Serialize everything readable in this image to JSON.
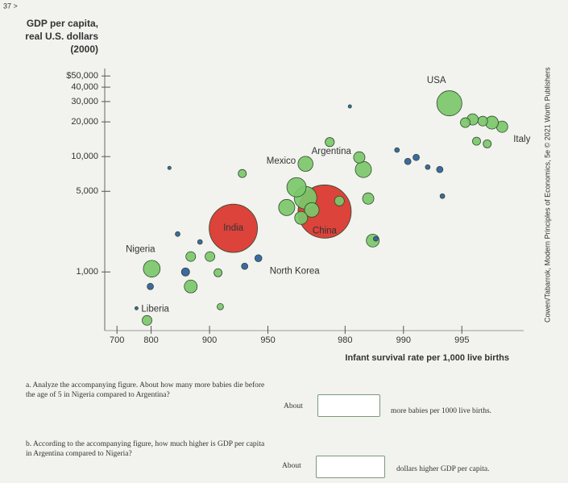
{
  "page_marker": "37 >",
  "chart_data": {
    "type": "bubble",
    "y_label_lines": [
      "GDP per capita,",
      "real U.S. dollars",
      "(2000)"
    ],
    "x_label": "Infant survival rate per 1,000 live births",
    "credit": "Cowen/Tabarrok, Modern Principles of Economics, 5e © 2021 Worth Publishers",
    "xscale": "log(1000 - x)",
    "yscale": "log",
    "xlim": [
      653,
      997.6
    ],
    "ylim": [
      310,
      58000
    ],
    "xticks": [
      700,
      800,
      900,
      950,
      980,
      990,
      995
    ],
    "yticks": [
      {
        "value": 50000,
        "label": "$50,000"
      },
      {
        "value": 40000,
        "label": "40,000"
      },
      {
        "value": 30000,
        "label": "30,000"
      },
      {
        "value": 20000,
        "label": "20,000"
      },
      {
        "value": 10000,
        "label": "10,000"
      },
      {
        "value": 5000,
        "label": "5,000"
      },
      {
        "value": 1000,
        "label": "1,000"
      }
    ],
    "labels": [
      "China",
      "India",
      "USA",
      "Nigeria",
      "Mexico",
      "Italy",
      "Argentina",
      "North Korea",
      "Liberia",
      null,
      null,
      null,
      null,
      null,
      null,
      null,
      null,
      null,
      null,
      null,
      null,
      null,
      null,
      null,
      null,
      null,
      null,
      null,
      null,
      null,
      null,
      null,
      null,
      null,
      null,
      null,
      null,
      null,
      null,
      null,
      null,
      null,
      null,
      null,
      null,
      null
    ],
    "x": [
      974.5,
      924.6,
      994.2,
      801.4,
      968,
      996.9,
      976,
      944,
      762,
      968,
      964.4,
      983.9,
      960,
      970.3,
      996.5,
      966.3,
      875,
      985.6,
      983.1,
      984.8,
      995.6,
      996.1,
      995.2,
      900.5,
      875,
      790,
      978.6,
      995.8,
      996.3,
      909.6,
      932.2,
      867,
      912,
      990.5,
      991.4,
      934.1,
      798,
      993.5,
      993.7,
      989.2,
      992.5,
      888,
      854,
      986.1,
      981.1,
      839
    ],
    "values": [
      3340,
      2390,
      28970,
      1066,
      8650,
      18150,
      13360,
      1315,
      484,
      4400,
      5420,
      7730,
      3620,
      3450,
      19700,
      2940,
      748,
      1870,
      9840,
      4330,
      21000,
      20300,
      19700,
      1360,
      1360,
      380,
      4120,
      13600,
      12900,
      984,
      7130,
      1000,
      500,
      9080,
      9840,
      1120,
      748,
      7730,
      4540,
      11400,
      8110,
      1820,
      2130,
      1940,
      27200,
      7980
    ],
    "sizes": [
      1260,
      1040,
      280,
      125,
      100,
      57,
      37,
      22,
      3,
      227,
      166,
      116,
      116,
      94,
      74,
      74,
      74,
      74,
      57,
      57,
      57,
      42,
      42,
      42,
      42,
      42,
      42,
      29,
      29,
      29,
      29,
      29,
      18,
      18,
      18,
      18,
      18,
      18,
      10,
      10,
      10,
      10,
      10,
      10,
      5,
      5
    ],
    "colors": [
      "#d9342b",
      "#d9342b",
      "#7cc86a",
      "#7cc86a",
      "#7cc86a",
      "#7cc86a",
      "#7cc86a",
      "#2f5d9e",
      "#2f5d9e",
      "#7cc86a",
      "#7cc86a",
      "#7cc86a",
      "#7cc86a",
      "#7cc86a",
      "#7cc86a",
      "#7cc86a",
      "#7cc86a",
      "#7cc86a",
      "#7cc86a",
      "#7cc86a",
      "#7cc86a",
      "#7cc86a",
      "#7cc86a",
      "#7cc86a",
      "#7cc86a",
      "#7cc86a",
      "#7cc86a",
      "#7cc86a",
      "#7cc86a",
      "#7cc86a",
      "#7cc86a",
      "#2f5d9e",
      "#7cc86a",
      "#2f5d9e",
      "#2f5d9e",
      "#2f5d9e",
      "#2f5d9e",
      "#2f5d9e",
      "#2f5d9e",
      "#2f5d9e",
      "#2f5d9e",
      "#2f5d9e",
      "#2f5d9e",
      "#2f5d9e",
      "#2f5d9e",
      "#2f5d9e"
    ]
  },
  "questions": [
    {
      "text": "a. Analyze the accompanying figure. About how many more babies die before the age of 5 in Nigeria compared to Argentina?",
      "prefix": "About",
      "suffix": "more babies per 1000 live births."
    },
    {
      "text": "b. According to the accompanying figure, how much higher is GDP per capita in Argentina compared to Nigeria?",
      "prefix": "About",
      "suffix": "dollars higher GDP per capita."
    }
  ]
}
